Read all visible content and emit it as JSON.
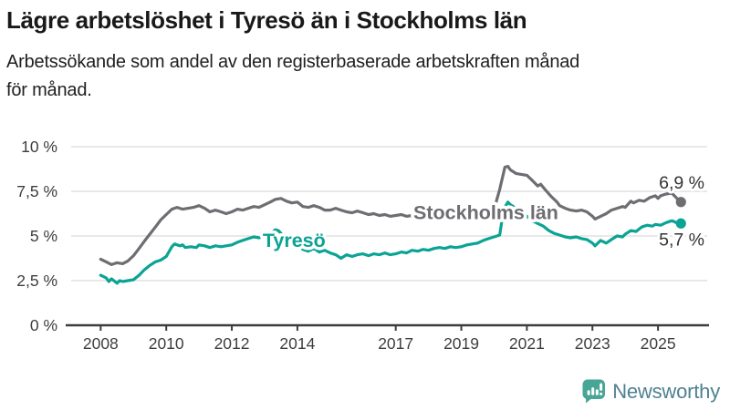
{
  "header": {
    "title": "Lägre arbetslöshet i Tyresö än i Stockholms län",
    "subtitle_lines": [
      "Arbetssökande som andel av den registerbaserade arbetskraften månad",
      "för månad."
    ]
  },
  "chart_data": {
    "type": "line",
    "unit": "%",
    "x_domain": [
      2007.1,
      2026.5
    ],
    "y_domain": [
      0,
      10
    ],
    "grid_on": true,
    "grid_color": "#d9d9d9",
    "axis_color": "#3c3c3c",
    "tick_label_color": "#3e3e3e",
    "value_label_color": "#333333",
    "y_ticks": [
      {
        "value": 0,
        "label": "0 %"
      },
      {
        "value": 2.5,
        "label": "2,5 %"
      },
      {
        "value": 5,
        "label": "5 %"
      },
      {
        "value": 7.5,
        "label": "7,5 %"
      },
      {
        "value": 10,
        "label": "10 %"
      }
    ],
    "x_ticks": [
      {
        "value": 2008,
        "label": "2008"
      },
      {
        "value": 2010,
        "label": "2010"
      },
      {
        "value": 2012,
        "label": "2012"
      },
      {
        "value": 2014,
        "label": "2014"
      },
      {
        "value": 2017,
        "label": "2017"
      },
      {
        "value": 2019,
        "label": "2019"
      },
      {
        "value": 2021,
        "label": "2021"
      },
      {
        "value": 2023,
        "label": "2023"
      },
      {
        "value": 2025,
        "label": "2025"
      }
    ],
    "series": [
      {
        "name": "Stockholms län",
        "color": "#6d6d72",
        "line_label": {
          "text": "Stockholms län",
          "x": 2019.75,
          "y": 5.95
        },
        "end_label": {
          "text": "6,9 %",
          "position": "above"
        },
        "last_value": 6.9,
        "points": [
          [
            2008.0,
            3.7
          ],
          [
            2008.17,
            3.55
          ],
          [
            2008.33,
            3.4
          ],
          [
            2008.5,
            3.5
          ],
          [
            2008.67,
            3.45
          ],
          [
            2008.83,
            3.6
          ],
          [
            2009.0,
            3.9
          ],
          [
            2009.17,
            4.3
          ],
          [
            2009.33,
            4.7
          ],
          [
            2009.5,
            5.1
          ],
          [
            2009.67,
            5.5
          ],
          [
            2009.83,
            5.9
          ],
          [
            2010.0,
            6.2
          ],
          [
            2010.17,
            6.5
          ],
          [
            2010.33,
            6.6
          ],
          [
            2010.5,
            6.5
          ],
          [
            2010.67,
            6.55
          ],
          [
            2010.83,
            6.6
          ],
          [
            2011.0,
            6.7
          ],
          [
            2011.17,
            6.55
          ],
          [
            2011.33,
            6.35
          ],
          [
            2011.5,
            6.45
          ],
          [
            2011.67,
            6.35
          ],
          [
            2011.83,
            6.25
          ],
          [
            2012.0,
            6.35
          ],
          [
            2012.17,
            6.5
          ],
          [
            2012.33,
            6.45
          ],
          [
            2012.5,
            6.55
          ],
          [
            2012.67,
            6.65
          ],
          [
            2012.83,
            6.6
          ],
          [
            2013.0,
            6.75
          ],
          [
            2013.17,
            6.9
          ],
          [
            2013.33,
            7.05
          ],
          [
            2013.5,
            7.1
          ],
          [
            2013.67,
            6.95
          ],
          [
            2013.83,
            6.85
          ],
          [
            2014.0,
            6.9
          ],
          [
            2014.17,
            6.65
          ],
          [
            2014.33,
            6.6
          ],
          [
            2014.5,
            6.7
          ],
          [
            2014.67,
            6.6
          ],
          [
            2014.83,
            6.45
          ],
          [
            2015.0,
            6.45
          ],
          [
            2015.17,
            6.55
          ],
          [
            2015.33,
            6.45
          ],
          [
            2015.5,
            6.35
          ],
          [
            2015.67,
            6.3
          ],
          [
            2015.83,
            6.4
          ],
          [
            2016.0,
            6.3
          ],
          [
            2016.17,
            6.2
          ],
          [
            2016.33,
            6.25
          ],
          [
            2016.5,
            6.15
          ],
          [
            2016.67,
            6.2
          ],
          [
            2016.83,
            6.1
          ],
          [
            2017.0,
            6.15
          ],
          [
            2017.17,
            6.2
          ],
          [
            2017.33,
            6.1
          ],
          [
            2017.5,
            6.15
          ],
          [
            2017.67,
            6.1
          ],
          [
            2017.83,
            6.2
          ],
          [
            2018.0,
            6.1
          ],
          [
            2018.17,
            6.05
          ],
          [
            2018.33,
            6.0
          ],
          [
            2018.5,
            5.95
          ],
          [
            2018.67,
            6.0
          ],
          [
            2018.83,
            6.05
          ],
          [
            2019.0,
            6.0
          ],
          [
            2019.17,
            6.1
          ],
          [
            2019.33,
            6.15
          ],
          [
            2019.5,
            6.2
          ],
          [
            2019.67,
            6.3
          ],
          [
            2019.83,
            6.4
          ],
          [
            2020.0,
            6.5
          ],
          [
            2020.17,
            7.6
          ],
          [
            2020.33,
            8.85
          ],
          [
            2020.42,
            8.9
          ],
          [
            2020.5,
            8.7
          ],
          [
            2020.67,
            8.5
          ],
          [
            2020.83,
            8.45
          ],
          [
            2021.0,
            8.4
          ],
          [
            2021.17,
            8.1
          ],
          [
            2021.33,
            7.8
          ],
          [
            2021.42,
            7.9
          ],
          [
            2021.58,
            7.55
          ],
          [
            2021.75,
            7.2
          ],
          [
            2021.92,
            6.9
          ],
          [
            2022.0,
            6.7
          ],
          [
            2022.17,
            6.55
          ],
          [
            2022.33,
            6.45
          ],
          [
            2022.5,
            6.4
          ],
          [
            2022.67,
            6.45
          ],
          [
            2022.83,
            6.35
          ],
          [
            2023.0,
            6.1
          ],
          [
            2023.08,
            5.95
          ],
          [
            2023.25,
            6.1
          ],
          [
            2023.42,
            6.25
          ],
          [
            2023.58,
            6.45
          ],
          [
            2023.75,
            6.55
          ],
          [
            2023.92,
            6.65
          ],
          [
            2024.0,
            6.6
          ],
          [
            2024.17,
            6.95
          ],
          [
            2024.25,
            6.85
          ],
          [
            2024.42,
            7.0
          ],
          [
            2024.58,
            6.95
          ],
          [
            2024.75,
            7.15
          ],
          [
            2024.92,
            7.25
          ],
          [
            2025.0,
            7.1
          ],
          [
            2025.08,
            7.25
          ],
          [
            2025.25,
            7.35
          ],
          [
            2025.42,
            7.4
          ],
          [
            2025.5,
            7.25
          ],
          [
            2025.58,
            7.1
          ],
          [
            2025.7,
            6.9
          ]
        ]
      },
      {
        "name": "Tyresö",
        "color": "#0ba394",
        "line_label": {
          "text": "Tyresö",
          "x": 2013.9,
          "y": 4.38
        },
        "end_label": {
          "text": "5,7 %",
          "position": "below"
        },
        "last_value": 5.7,
        "points": [
          [
            2008.0,
            2.8
          ],
          [
            2008.17,
            2.65
          ],
          [
            2008.25,
            2.45
          ],
          [
            2008.33,
            2.6
          ],
          [
            2008.5,
            2.35
          ],
          [
            2008.58,
            2.5
          ],
          [
            2008.67,
            2.45
          ],
          [
            2008.83,
            2.5
          ],
          [
            2009.0,
            2.55
          ],
          [
            2009.17,
            2.8
          ],
          [
            2009.33,
            3.1
          ],
          [
            2009.5,
            3.35
          ],
          [
            2009.67,
            3.55
          ],
          [
            2009.83,
            3.65
          ],
          [
            2010.0,
            3.85
          ],
          [
            2010.17,
            4.4
          ],
          [
            2010.25,
            4.55
          ],
          [
            2010.42,
            4.45
          ],
          [
            2010.5,
            4.5
          ],
          [
            2010.58,
            4.35
          ],
          [
            2010.75,
            4.4
          ],
          [
            2010.92,
            4.35
          ],
          [
            2011.0,
            4.5
          ],
          [
            2011.17,
            4.45
          ],
          [
            2011.33,
            4.35
          ],
          [
            2011.5,
            4.45
          ],
          [
            2011.67,
            4.4
          ],
          [
            2011.83,
            4.45
          ],
          [
            2012.0,
            4.5
          ],
          [
            2012.17,
            4.65
          ],
          [
            2012.33,
            4.75
          ],
          [
            2012.5,
            4.85
          ],
          [
            2012.67,
            4.95
          ],
          [
            2012.83,
            4.9
          ],
          [
            2013.0,
            5.0
          ],
          [
            2013.17,
            5.1
          ],
          [
            2013.33,
            5.35
          ],
          [
            2013.42,
            5.3
          ],
          [
            2013.5,
            5.15
          ],
          [
            2013.67,
            4.65
          ],
          [
            2013.83,
            4.45
          ],
          [
            2014.0,
            4.55
          ],
          [
            2014.17,
            4.25
          ],
          [
            2014.33,
            4.15
          ],
          [
            2014.5,
            4.3
          ],
          [
            2014.67,
            4.1
          ],
          [
            2014.83,
            4.2
          ],
          [
            2015.0,
            4.05
          ],
          [
            2015.17,
            3.95
          ],
          [
            2015.33,
            3.75
          ],
          [
            2015.5,
            3.95
          ],
          [
            2015.67,
            3.85
          ],
          [
            2015.83,
            3.95
          ],
          [
            2016.0,
            4.0
          ],
          [
            2016.17,
            3.9
          ],
          [
            2016.33,
            4.0
          ],
          [
            2016.5,
            3.95
          ],
          [
            2016.67,
            4.05
          ],
          [
            2016.83,
            3.95
          ],
          [
            2017.0,
            4.0
          ],
          [
            2017.17,
            4.1
          ],
          [
            2017.33,
            4.05
          ],
          [
            2017.5,
            4.2
          ],
          [
            2017.67,
            4.15
          ],
          [
            2017.83,
            4.25
          ],
          [
            2018.0,
            4.2
          ],
          [
            2018.17,
            4.3
          ],
          [
            2018.33,
            4.35
          ],
          [
            2018.5,
            4.3
          ],
          [
            2018.67,
            4.4
          ],
          [
            2018.83,
            4.35
          ],
          [
            2019.0,
            4.4
          ],
          [
            2019.17,
            4.5
          ],
          [
            2019.33,
            4.55
          ],
          [
            2019.5,
            4.6
          ],
          [
            2019.67,
            4.75
          ],
          [
            2019.83,
            4.85
          ],
          [
            2020.0,
            4.95
          ],
          [
            2020.17,
            5.05
          ],
          [
            2020.25,
            6.0
          ],
          [
            2020.33,
            6.6
          ],
          [
            2020.42,
            6.9
          ],
          [
            2020.5,
            6.75
          ],
          [
            2020.67,
            6.55
          ],
          [
            2020.83,
            6.3
          ],
          [
            2021.0,
            6.1
          ],
          [
            2021.17,
            5.85
          ],
          [
            2021.33,
            5.7
          ],
          [
            2021.5,
            5.55
          ],
          [
            2021.67,
            5.3
          ],
          [
            2021.83,
            5.15
          ],
          [
            2022.0,
            5.05
          ],
          [
            2022.17,
            4.95
          ],
          [
            2022.33,
            4.9
          ],
          [
            2022.5,
            4.95
          ],
          [
            2022.67,
            4.85
          ],
          [
            2022.83,
            4.8
          ],
          [
            2023.0,
            4.6
          ],
          [
            2023.08,
            4.45
          ],
          [
            2023.25,
            4.75
          ],
          [
            2023.42,
            4.6
          ],
          [
            2023.58,
            4.8
          ],
          [
            2023.75,
            5.0
          ],
          [
            2023.92,
            4.95
          ],
          [
            2024.0,
            5.1
          ],
          [
            2024.17,
            5.3
          ],
          [
            2024.33,
            5.25
          ],
          [
            2024.5,
            5.5
          ],
          [
            2024.67,
            5.6
          ],
          [
            2024.83,
            5.55
          ],
          [
            2024.92,
            5.65
          ],
          [
            2025.08,
            5.6
          ],
          [
            2025.25,
            5.75
          ],
          [
            2025.42,
            5.85
          ],
          [
            2025.5,
            5.8
          ],
          [
            2025.58,
            5.72
          ],
          [
            2025.7,
            5.7
          ]
        ]
      }
    ]
  },
  "footer": {
    "brand": "Newsworthy",
    "brand_color": "#4e8191",
    "logo_color": "#47a695"
  }
}
